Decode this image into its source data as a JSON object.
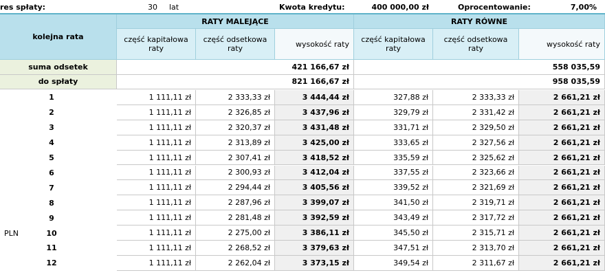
{
  "top": {
    "period_label": "res spłaty:",
    "years": "30",
    "years_unit": "lat",
    "loan_label": "Kwota kredytu:",
    "loan": "400 000,00 zł",
    "rate_label": "Oprocentowanie:",
    "rate": "7,00%"
  },
  "header": {
    "row_label": "kolejna rata",
    "groups": [
      "RATY MALEJĄCE",
      "RATY RÓWNE"
    ],
    "columns": [
      "część kapitałowa raty",
      "część odsetkowa raty",
      "wysokość raty",
      "część kapitałowa raty",
      "część odsetkowa raty",
      "wysokość raty"
    ]
  },
  "summary": [
    {
      "label": "suma odsetek",
      "decreasing": "421 166,67 zł",
      "equal": "558 035,59"
    },
    {
      "label": "do spłaty",
      "decreasing": "821 166,67 zł",
      "equal": "958 035,59"
    }
  ],
  "currency": "PLN",
  "rows": [
    [
      "1",
      "1 111,11 zł",
      "2 333,33 zł",
      "3 444,44 zł",
      "327,88 zł",
      "2 333,33 zł",
      "2 661,21 zł"
    ],
    [
      "2",
      "1 111,11 zł",
      "2 326,85 zł",
      "3 437,96 zł",
      "329,79 zł",
      "2 331,42 zł",
      "2 661,21 zł"
    ],
    [
      "3",
      "1 111,11 zł",
      "2 320,37 zł",
      "3 431,48 zł",
      "331,71 zł",
      "2 329,50 zł",
      "2 661,21 zł"
    ],
    [
      "4",
      "1 111,11 zł",
      "2 313,89 zł",
      "3 425,00 zł",
      "333,65 zł",
      "2 327,56 zł",
      "2 661,21 zł"
    ],
    [
      "5",
      "1 111,11 zł",
      "2 307,41 zł",
      "3 418,52 zł",
      "335,59 zł",
      "2 325,62 zł",
      "2 661,21 zł"
    ],
    [
      "6",
      "1 111,11 zł",
      "2 300,93 zł",
      "3 412,04 zł",
      "337,55 zł",
      "2 323,66 zł",
      "2 661,21 zł"
    ],
    [
      "7",
      "1 111,11 zł",
      "2 294,44 zł",
      "3 405,56 zł",
      "339,52 zł",
      "2 321,69 zł",
      "2 661,21 zł"
    ],
    [
      "8",
      "1 111,11 zł",
      "2 287,96 zł",
      "3 399,07 zł",
      "341,50 zł",
      "2 319,71 zł",
      "2 661,21 zł"
    ],
    [
      "9",
      "1 111,11 zł",
      "2 281,48 zł",
      "3 392,59 zł",
      "343,49 zł",
      "2 317,72 zł",
      "2 661,21 zł"
    ],
    [
      "10",
      "1 111,11 zł",
      "2 275,00 zł",
      "3 386,11 zł",
      "345,50 zł",
      "2 315,71 zł",
      "2 661,21 zł"
    ],
    [
      "11",
      "1 111,11 zł",
      "2 268,52 zł",
      "3 379,63 zł",
      "347,51 zł",
      "2 313,70 zł",
      "2 661,21 zł"
    ],
    [
      "12",
      "1 111,11 zł",
      "2 262,04 zł",
      "3 373,15 zł",
      "349,54 zł",
      "2 311,67 zł",
      "2 661,21 zł"
    ]
  ]
}
